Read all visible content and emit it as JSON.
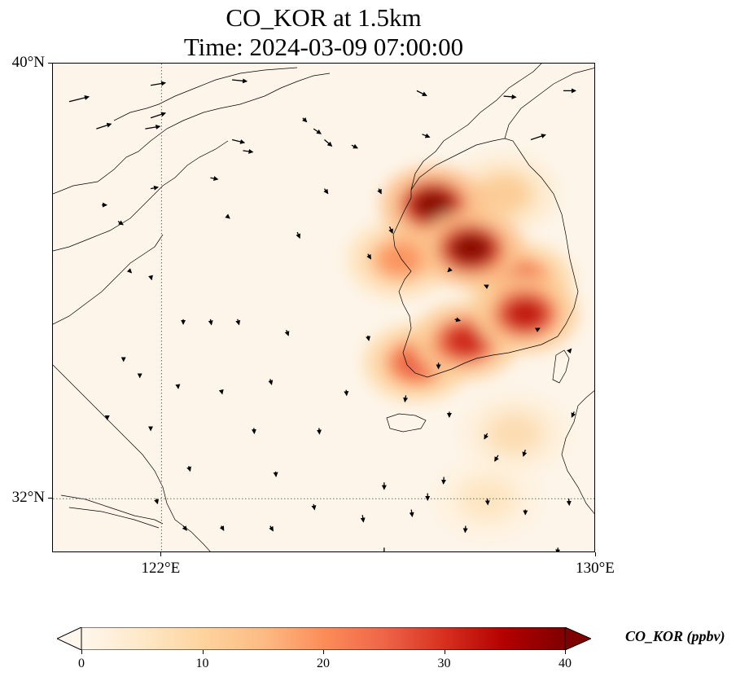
{
  "title_line1": "CO_KOR at 1.5km",
  "title_line2": "Time: 2024-03-09 07:00:00",
  "lat_labels": [
    {
      "value": 40,
      "text": "40°N"
    },
    {
      "value": 32,
      "text": "32°N"
    }
  ],
  "lon_labels": [
    {
      "value": 122,
      "text": "122°E"
    },
    {
      "value": 130,
      "text": "130°E"
    }
  ],
  "map_extent": {
    "lon_min": 120,
    "lon_max": 130,
    "lat_min": 31,
    "lat_max": 40
  },
  "gridlines": {
    "lons": [
      122
    ],
    "lats": [
      32
    ],
    "style": "dotted"
  },
  "colorbar": {
    "label": "CO_KOR (ppbv)",
    "min": 0,
    "max": 40,
    "ticks": [
      {
        "value": 0,
        "text": "0"
      },
      {
        "value": 10,
        "text": "10"
      },
      {
        "value": 20,
        "text": "20"
      },
      {
        "value": 30,
        "text": "30"
      },
      {
        "value": 40,
        "text": "40"
      }
    ],
    "colormap": "OrRd",
    "colors": [
      "#fff7ec",
      "#fee8c8",
      "#fdd49e",
      "#fdbb84",
      "#fc8d59",
      "#ef6548",
      "#d7301f",
      "#b30000",
      "#7f0000"
    ],
    "extend": "both"
  },
  "co_hotspots": [
    {
      "lon": 127.0,
      "lat": 37.4,
      "value": 40
    },
    {
      "lon": 127.7,
      "lat": 36.6,
      "value": 40
    },
    {
      "lon": 128.7,
      "lat": 35.4,
      "value": 34
    },
    {
      "lon": 127.6,
      "lat": 34.9,
      "value": 32
    },
    {
      "lon": 126.7,
      "lat": 34.5,
      "value": 26
    },
    {
      "lon": 128.6,
      "lat": 36.0,
      "value": 26
    },
    {
      "lon": 126.4,
      "lat": 36.4,
      "value": 20
    },
    {
      "lon": 128.3,
      "lat": 37.6,
      "value": 12
    },
    {
      "lon": 128.5,
      "lat": 33.2,
      "value": 8
    },
    {
      "lon": 128.0,
      "lat": 32.0,
      "value": 6
    }
  ],
  "wind_arrows": [
    {
      "lon": 120.3,
      "lat": 39.3,
      "u": 4,
      "v": 1
    },
    {
      "lon": 120.8,
      "lat": 38.8,
      "u": 3,
      "v": 1
    },
    {
      "lon": 121.8,
      "lat": 39.0,
      "u": 3,
      "v": 1
    },
    {
      "lon": 121.7,
      "lat": 38.8,
      "u": 3,
      "v": 0.5
    },
    {
      "lon": 121.8,
      "lat": 39.6,
      "u": 3,
      "v": 0.5
    },
    {
      "lon": 123.3,
      "lat": 39.7,
      "u": 3,
      "v": -0.3
    },
    {
      "lon": 123.3,
      "lat": 38.6,
      "u": 2.5,
      "v": -0.6
    },
    {
      "lon": 123.5,
      "lat": 38.4,
      "u": 2,
      "v": -0.3
    },
    {
      "lon": 122.9,
      "lat": 37.9,
      "u": 1.5,
      "v": -0.3
    },
    {
      "lon": 124.8,
      "lat": 38.8,
      "u": 1.5,
      "v": -1
    },
    {
      "lon": 125.0,
      "lat": 38.6,
      "u": 1.5,
      "v": -1.3
    },
    {
      "lon": 125.5,
      "lat": 38.5,
      "u": 1.2,
      "v": -0.6
    },
    {
      "lon": 126.7,
      "lat": 39.5,
      "u": 2,
      "v": -1
    },
    {
      "lon": 126.8,
      "lat": 38.7,
      "u": 1.5,
      "v": -0.6
    },
    {
      "lon": 128.3,
      "lat": 39.4,
      "u": 2.5,
      "v": -0.2
    },
    {
      "lon": 129.4,
      "lat": 39.5,
      "u": 2.5,
      "v": 0
    },
    {
      "lon": 128.8,
      "lat": 38.6,
      "u": 3,
      "v": 1
    },
    {
      "lon": 125.0,
      "lat": 37.7,
      "u": 0.7,
      "v": -1
    },
    {
      "lon": 126.0,
      "lat": 37.7,
      "u": 0.5,
      "v": -1
    },
    {
      "lon": 124.5,
      "lat": 36.9,
      "u": 0.5,
      "v": -1.2
    },
    {
      "lon": 125.8,
      "lat": 36.5,
      "u": 0.6,
      "v": -1
    },
    {
      "lon": 121.8,
      "lat": 37.7,
      "u": 1.5,
      "v": 0.3
    },
    {
      "lon": 120.9,
      "lat": 37.4,
      "u": 1,
      "v": 0
    },
    {
      "lon": 121.2,
      "lat": 37.1,
      "u": 1,
      "v": -0.7
    },
    {
      "lon": 123.2,
      "lat": 37.2,
      "u": 0.6,
      "v": -0.5
    },
    {
      "lon": 122.4,
      "lat": 35.3,
      "u": 0,
      "v": -1
    },
    {
      "lon": 122.9,
      "lat": 35.3,
      "u": 0.2,
      "v": -1.1
    },
    {
      "lon": 123.4,
      "lat": 35.3,
      "u": 0.3,
      "v": -1.1
    },
    {
      "lon": 124.3,
      "lat": 35.1,
      "u": 0.4,
      "v": -1.1
    },
    {
      "lon": 125.8,
      "lat": 35.0,
      "u": 0.2,
      "v": -1
    },
    {
      "lon": 121.3,
      "lat": 34.6,
      "u": 0,
      "v": -0.8
    },
    {
      "lon": 121.6,
      "lat": 34.3,
      "u": 0,
      "v": -0.8
    },
    {
      "lon": 122.3,
      "lat": 34.1,
      "u": 0.1,
      "v": -0.8
    },
    {
      "lon": 123.1,
      "lat": 34.0,
      "u": 0.2,
      "v": -0.8
    },
    {
      "lon": 124.0,
      "lat": 34.2,
      "u": 0.3,
      "v": -1.1
    },
    {
      "lon": 125.4,
      "lat": 34.0,
      "u": 0.1,
      "v": -1.1
    },
    {
      "lon": 123.7,
      "lat": 33.3,
      "u": 0.1,
      "v": -1.1
    },
    {
      "lon": 124.9,
      "lat": 33.3,
      "u": 0.1,
      "v": -1.2
    },
    {
      "lon": 121.0,
      "lat": 33.5,
      "u": 0,
      "v": -0.5
    },
    {
      "lon": 121.8,
      "lat": 33.3,
      "u": 0,
      "v": -0.5
    },
    {
      "lon": 122.5,
      "lat": 32.6,
      "u": 0.3,
      "v": -1
    },
    {
      "lon": 121.9,
      "lat": 32.0,
      "u": 0.3,
      "v": -1
    },
    {
      "lon": 124.1,
      "lat": 32.5,
      "u": 0.1,
      "v": -1
    },
    {
      "lon": 124.8,
      "lat": 31.9,
      "u": 0.2,
      "v": -1.1
    },
    {
      "lon": 126.1,
      "lat": 32.3,
      "u": 0,
      "v": -1.4
    },
    {
      "lon": 126.6,
      "lat": 31.8,
      "u": 0.2,
      "v": -1.4
    },
    {
      "lon": 122.4,
      "lat": 31.5,
      "u": 0.7,
      "v": -0.9
    },
    {
      "lon": 123.1,
      "lat": 31.5,
      "u": 0.5,
      "v": -0.9
    },
    {
      "lon": 124.0,
      "lat": 31.5,
      "u": 0.6,
      "v": -1
    },
    {
      "lon": 125.7,
      "lat": 31.7,
      "u": 0.2,
      "v": -1.4
    },
    {
      "lon": 126.1,
      "lat": 31.1,
      "u": 0,
      "v": -1.6
    },
    {
      "lon": 126.9,
      "lat": 32.1,
      "u": 0,
      "v": -1.4
    },
    {
      "lon": 127.6,
      "lat": 31.5,
      "u": -0.1,
      "v": -1.3
    },
    {
      "lon": 127.2,
      "lat": 32.4,
      "u": -0.1,
      "v": -1.4
    },
    {
      "lon": 128.0,
      "lat": 32.0,
      "u": 0.1,
      "v": -1.2
    },
    {
      "lon": 127.1,
      "lat": 34.5,
      "u": 0,
      "v": -1.2
    },
    {
      "lon": 126.5,
      "lat": 33.9,
      "u": -0.2,
      "v": -1.3
    },
    {
      "lon": 127.3,
      "lat": 33.6,
      "u": 0,
      "v": -1.1
    },
    {
      "lon": 128.0,
      "lat": 33.2,
      "u": -0.6,
      "v": -1.1
    },
    {
      "lon": 128.2,
      "lat": 32.8,
      "u": -0.7,
      "v": -1.2
    },
    {
      "lon": 128.7,
      "lat": 32.9,
      "u": -0.4,
      "v": -1.3
    },
    {
      "lon": 129.5,
      "lat": 32.0,
      "u": 0.1,
      "v": -1.3
    },
    {
      "lon": 129.3,
      "lat": 31.1,
      "u": -0.1,
      "v": -1.2
    },
    {
      "lon": 128.7,
      "lat": 31.8,
      "u": 0,
      "v": -1
    },
    {
      "lon": 128.0,
      "lat": 35.9,
      "u": -0.6,
      "v": 0.3
    },
    {
      "lon": 127.3,
      "lat": 36.2,
      "u": -0.3,
      "v": -0.3
    },
    {
      "lon": 127.4,
      "lat": 35.3,
      "u": 1.1,
      "v": -0.3
    },
    {
      "lon": 128.9,
      "lat": 35.1,
      "u": 0.7,
      "v": 0.4
    },
    {
      "lon": 129.5,
      "lat": 34.7,
      "u": 0.5,
      "v": 0.6
    },
    {
      "lon": 129.6,
      "lat": 33.6,
      "u": -0.5,
      "v": -1.1
    },
    {
      "lon": 126.2,
      "lat": 37.0,
      "u": 0.6,
      "v": -1.3
    },
    {
      "lon": 124.6,
      "lat": 39.0,
      "u": 0.8,
      "v": -0.8
    },
    {
      "lon": 121.4,
      "lat": 36.2,
      "u": 0.5,
      "v": -0.5
    },
    {
      "lon": 121.8,
      "lat": 36.1,
      "u": 0.2,
      "v": -0.8
    }
  ]
}
